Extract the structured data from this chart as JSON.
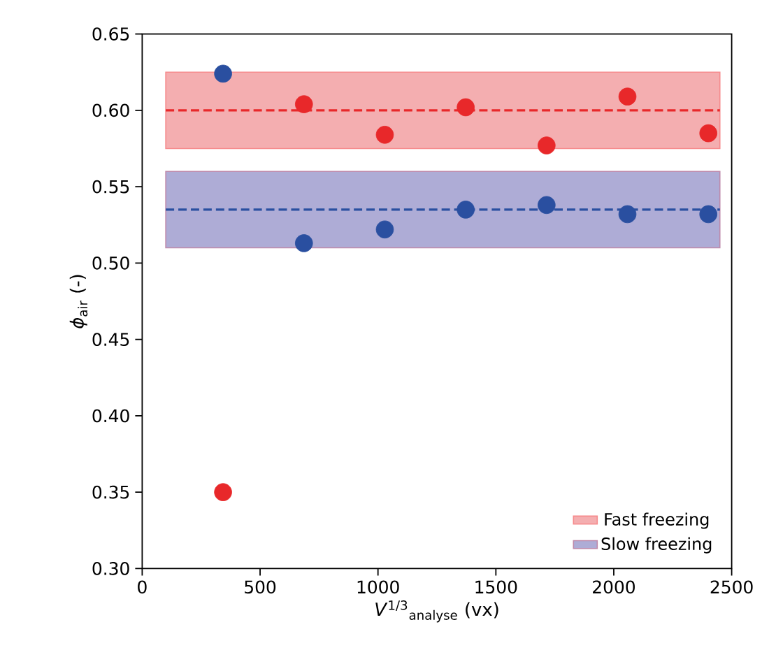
{
  "chart_data": {
    "type": "scatter",
    "xlabel": "*V*$^{1/3}$$_{analyse}$ (vx)",
    "ylabel": "*ϕ*$_{air}$ (-)",
    "x": [
      343,
      686,
      1029,
      1372,
      1715,
      2058,
      2401
    ],
    "series": [
      {
        "color": "#e8282a",
        "values": [
          0.35,
          0.604,
          0.584,
          0.602,
          0.577,
          0.609,
          0.585
        ]
      },
      {
        "color": "#2a4fa0",
        "values": [
          0.624,
          0.513,
          0.522,
          0.535,
          0.538,
          0.532,
          0.532
        ]
      }
    ],
    "marker": "circle",
    "xlim": [
      0,
      2500
    ],
    "xticks": [
      0,
      500,
      1000,
      1500,
      2000,
      2500
    ],
    "ylim": [
      0.3,
      0.65
    ],
    "yticks": [
      {
        "value": 0.3,
        "label": "0.30"
      },
      0.35,
      {
        "value": 0.4,
        "label": "0.40"
      },
      0.45,
      {
        "value": 0.5,
        "label": "0.50"
      },
      0.55,
      {
        "value": 0.6,
        "label": "0.60"
      },
      0.65
    ],
    "ref_lines": [
      {
        "axis": "y",
        "value": 0.6,
        "color": "#e8282a",
        "line_style": "dashed"
      },
      {
        "axis": "y",
        "value": 0.535,
        "color": "#2a4fa0",
        "line_style": "dashed"
      }
    ],
    "bands": [
      {
        "axis": "y",
        "from": 0.575,
        "to": 0.625,
        "label": "Fast freezing",
        "color": "#f4aeb0"
      },
      {
        "axis": "y",
        "from": 0.51,
        "to": 0.56,
        "label": "Slow freezing",
        "color": "#aeacd6"
      }
    ],
    "legend": "bottom right"
  }
}
